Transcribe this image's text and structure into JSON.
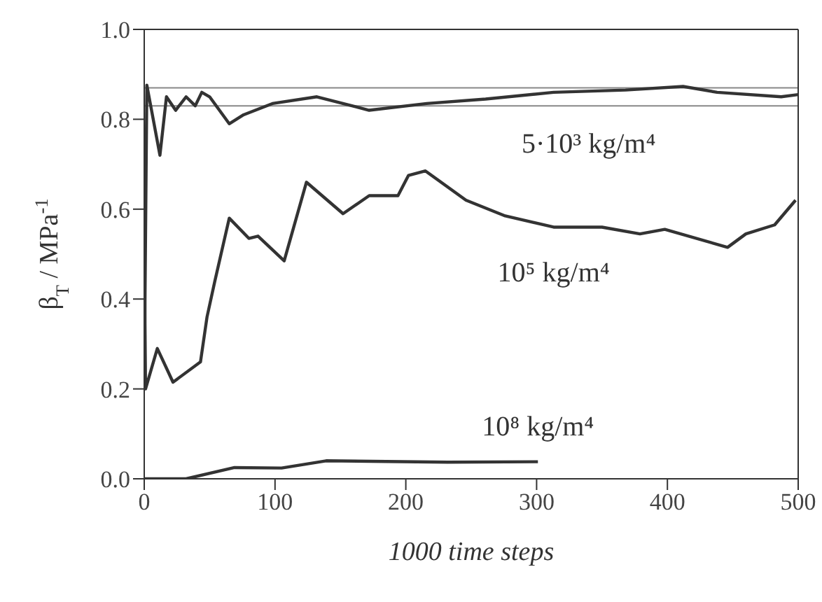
{
  "chart_data": {
    "type": "line",
    "xlabel": "1000 time steps",
    "ylabel": "β$_{T}$ / MPa$^{-1}$",
    "xlim": [
      0,
      500
    ],
    "xticks": [
      0,
      100,
      200,
      300,
      400,
      500
    ],
    "ylim": [
      0,
      1
    ],
    "yticks": [
      {
        "value": 0,
        "label": "0.0"
      },
      {
        "value": 0.2,
        "label": "0.2"
      },
      {
        "value": 0.4,
        "label": "0.4"
      },
      {
        "value": 0.6,
        "label": "0.6"
      },
      {
        "value": 0.8,
        "label": "0.8"
      },
      {
        "value": 1,
        "label": "1.0"
      }
    ],
    "grid": false,
    "marker": "none",
    "line_style": "solid",
    "series": [
      {
        "name": "5·10³ kg/m⁴",
        "color": "#333333",
        "x": [
          0,
          2,
          12,
          17,
          24,
          32,
          39,
          44,
          50,
          65,
          76,
          98,
          132,
          172,
          216,
          261,
          313,
          368,
          412,
          438,
          487,
          500
        ],
        "values": [
          0.2,
          0.876,
          0.72,
          0.85,
          0.82,
          0.85,
          0.83,
          0.86,
          0.85,
          0.79,
          0.81,
          0.835,
          0.85,
          0.82,
          0.835,
          0.845,
          0.86,
          0.865,
          0.873,
          0.86,
          0.85,
          0.855
        ]
      },
      {
        "name": "10⁵ kg/m⁴",
        "color": "#333333",
        "x": [
          0,
          1,
          10,
          22,
          43,
          48,
          54,
          65,
          80,
          87,
          107,
          124,
          152,
          172,
          194,
          202,
          215,
          246,
          276,
          313,
          350,
          379,
          398,
          446,
          460,
          482,
          498
        ],
        "values": [
          0.55,
          0.2,
          0.29,
          0.215,
          0.26,
          0.36,
          0.44,
          0.58,
          0.535,
          0.54,
          0.485,
          0.66,
          0.59,
          0.63,
          0.63,
          0.675,
          0.685,
          0.62,
          0.585,
          0.56,
          0.56,
          0.545,
          0.555,
          0.515,
          0.545,
          0.565,
          0.62
        ]
      },
      {
        "name": "10⁸ kg/m⁴",
        "color": "#333333",
        "x": [
          0,
          32,
          69,
          105,
          139,
          232,
          301
        ],
        "values": [
          0,
          0,
          0.025,
          0.024,
          0.04,
          0.037,
          0.038
        ]
      }
    ],
    "ref_lines": [
      {
        "axis": "y",
        "value": 0.87,
        "color": "#888888"
      },
      {
        "axis": "y",
        "value": 0.83,
        "color": "#888888"
      }
    ]
  }
}
